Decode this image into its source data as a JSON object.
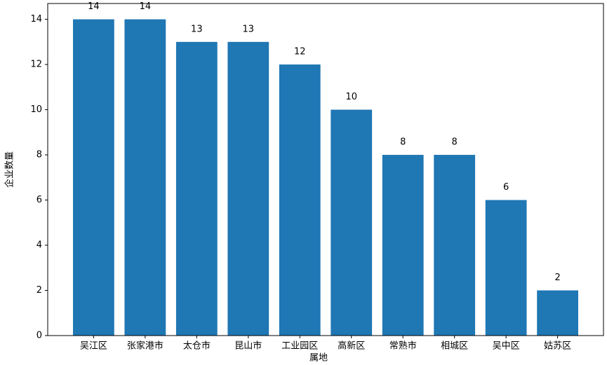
{
  "chart_data": {
    "type": "bar",
    "x_label": "属地",
    "y_label": "企业数量",
    "categories": [
      "吴江区",
      "张家港市",
      "太仓市",
      "昆山市",
      "工业园区",
      "高新区",
      "常熟市",
      "相城区",
      "吴中区",
      "姑苏区"
    ],
    "values": [
      14,
      14,
      13,
      13,
      12,
      10,
      8,
      8,
      6,
      2
    ],
    "color": "#1f77b4",
    "ylim": [
      0,
      14.7
    ],
    "yticks": [
      0,
      2,
      4,
      6,
      8,
      10,
      12,
      14
    ],
    "grid": false
  }
}
